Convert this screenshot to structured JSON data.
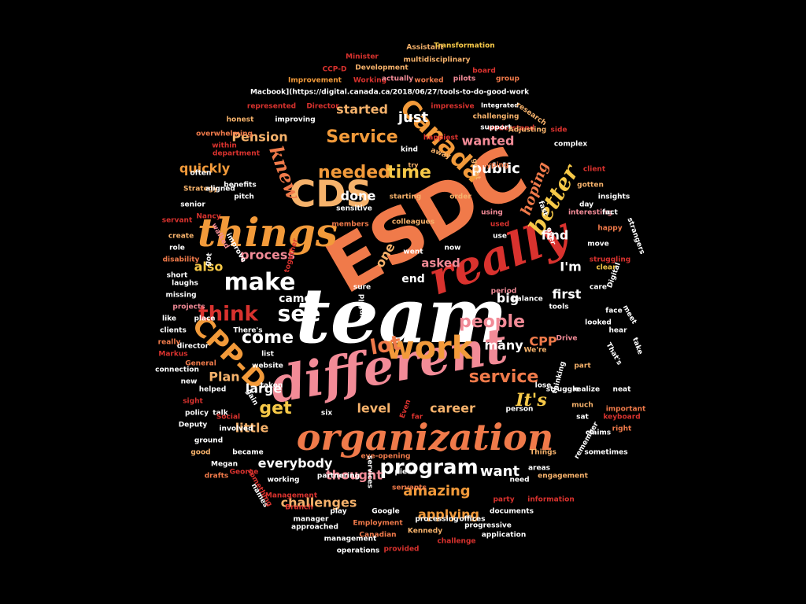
{
  "palette": {
    "background": "#000000",
    "white": "#ffffff",
    "pink": "#f28b97",
    "coral": "#f07a4a",
    "orange": "#f29a3a",
    "red": "#d9322e",
    "peach": "#f6b26b",
    "yellow": "#f7c948",
    "salmon": "#f56f6f"
  },
  "words": [
    {
      "text": "team",
      "weight": 100,
      "color": "white"
    },
    {
      "text": "ESDC",
      "weight": 95,
      "color": "coral"
    },
    {
      "text": "different",
      "weight": 80,
      "color": "pink"
    },
    {
      "text": "really",
      "weight": 72,
      "color": "red"
    },
    {
      "text": "organization",
      "weight": 70,
      "color": "coral"
    },
    {
      "text": "things",
      "weight": 62,
      "color": "orange"
    },
    {
      "text": "CDS",
      "weight": 60,
      "color": "peach"
    },
    {
      "text": "work",
      "weight": 55,
      "color": "orange"
    },
    {
      "text": "make",
      "weight": 50,
      "color": "white"
    },
    {
      "text": "Canada",
      "weight": 46,
      "color": "orange"
    },
    {
      "text": "CPP-D",
      "weight": 44,
      "color": "orange"
    },
    {
      "text": "program",
      "weight": 40,
      "color": "white"
    },
    {
      "text": "see",
      "weight": 38,
      "color": "white"
    },
    {
      "text": "lot",
      "weight": 38,
      "color": "coral"
    },
    {
      "text": "better",
      "weight": 36,
      "color": "yellow"
    },
    {
      "text": "knew",
      "weight": 34,
      "color": "coral"
    },
    {
      "text": "think",
      "weight": 34,
      "color": "red"
    },
    {
      "text": "needed",
      "weight": 33,
      "color": "orange"
    },
    {
      "text": "Service",
      "weight": 33,
      "color": "orange"
    },
    {
      "text": "time",
      "weight": 32,
      "color": "yellow"
    },
    {
      "text": "service",
      "weight": 32,
      "color": "coral"
    },
    {
      "text": "It's",
      "weight": 32,
      "color": "yellow"
    },
    {
      "text": "people",
      "weight": 31,
      "color": "pink"
    },
    {
      "text": "get",
      "weight": 30,
      "color": "yellow"
    },
    {
      "text": "come",
      "weight": 30,
      "color": "white"
    },
    {
      "text": "everybody",
      "weight": 28,
      "color": "white"
    },
    {
      "text": "amazing",
      "weight": 28,
      "color": "orange"
    },
    {
      "text": "challenges",
      "weight": 28,
      "color": "peach"
    },
    {
      "text": "applying",
      "weight": 27,
      "color": "orange"
    },
    {
      "text": "want",
      "weight": 27,
      "color": "white"
    },
    {
      "text": "public",
      "weight": 27,
      "color": "white"
    },
    {
      "text": "done",
      "weight": 26,
      "color": "white"
    },
    {
      "text": "started",
      "weight": 26,
      "color": "peach"
    },
    {
      "text": "wanted",
      "weight": 26,
      "color": "pink"
    },
    {
      "text": "just",
      "weight": 26,
      "color": "white"
    },
    {
      "text": "hoping",
      "weight": 25,
      "color": "coral"
    },
    {
      "text": "Pension",
      "weight": 25,
      "color": "peach"
    },
    {
      "text": "quickly",
      "weight": 25,
      "color": "orange"
    },
    {
      "text": "process",
      "weight": 24,
      "color": "pink"
    },
    {
      "text": "also",
      "weight": 24,
      "color": "yellow"
    },
    {
      "text": "Plan",
      "weight": 24,
      "color": "peach"
    },
    {
      "text": "large",
      "weight": 24,
      "color": "white"
    },
    {
      "text": "little",
      "weight": 24,
      "color": "peach"
    },
    {
      "text": "level",
      "weight": 24,
      "color": "peach"
    },
    {
      "text": "thought",
      "weight": 24,
      "color": "pink"
    },
    {
      "text": "career",
      "weight": 23,
      "color": "peach"
    },
    {
      "text": "many",
      "weight": 23,
      "color": "white"
    },
    {
      "text": "CPP",
      "weight": 23,
      "color": "coral"
    },
    {
      "text": "first",
      "weight": 23,
      "color": "white"
    },
    {
      "text": "find",
      "weight": 23,
      "color": "white"
    },
    {
      "text": "asked",
      "weight": 22,
      "color": "pink"
    },
    {
      "text": "I'm",
      "weight": 22,
      "color": "white"
    },
    {
      "text": "end",
      "weight": 22,
      "color": "white"
    },
    {
      "text": "big",
      "weight": 22,
      "color": "white"
    },
    {
      "text": "came",
      "weight": 22,
      "color": "white"
    },
    {
      "text": "one",
      "weight": 22,
      "color": "peach"
    },
    {
      "text": "Macbook](https://digital.canada.ca/2018/06/27/tools-to-do-good-work",
      "weight": 10,
      "color": "white"
    },
    {
      "text": "Minister",
      "weight": 11,
      "color": "red"
    },
    {
      "text": "Assistant",
      "weight": 11,
      "color": "peach"
    },
    {
      "text": "Transformation",
      "weight": 11,
      "color": "yellow"
    },
    {
      "text": "CCP-D",
      "weight": 11,
      "color": "red"
    },
    {
      "text": "Development",
      "weight": 11,
      "color": "peach"
    },
    {
      "text": "multidisciplinary",
      "weight": 11,
      "color": "peach"
    },
    {
      "text": "board",
      "weight": 11,
      "color": "red"
    },
    {
      "text": "Improvement",
      "weight": 11,
      "color": "orange"
    },
    {
      "text": "Working",
      "weight": 11,
      "color": "red"
    },
    {
      "text": "actually",
      "weight": 11,
      "color": "pink"
    },
    {
      "text": "worked",
      "weight": 11,
      "color": "coral"
    },
    {
      "text": "pilots",
      "weight": 11,
      "color": "pink"
    },
    {
      "text": "group",
      "weight": 11,
      "color": "coral"
    },
    {
      "text": "Integrated",
      "weight": 11,
      "color": "white"
    },
    {
      "text": "represented",
      "weight": 11,
      "color": "red"
    },
    {
      "text": "Director",
      "weight": 11,
      "color": "red"
    },
    {
      "text": "impressive",
      "weight": 11,
      "color": "red"
    },
    {
      "text": "challenging",
      "weight": 11,
      "color": "peach"
    },
    {
      "text": "honest",
      "weight": 11,
      "color": "peach"
    },
    {
      "text": "improving",
      "weight": 11,
      "color": "white"
    },
    {
      "text": "understand",
      "weight": 11,
      "color": "red"
    },
    {
      "text": "research",
      "weight": 11,
      "color": "peach"
    },
    {
      "text": "overwhelming",
      "weight": 11,
      "color": "coral"
    },
    {
      "text": "support",
      "weight": 11,
      "color": "white"
    },
    {
      "text": "Adjusting",
      "weight": 11,
      "color": "peach"
    },
    {
      "text": "side",
      "weight": 11,
      "color": "red"
    },
    {
      "text": "within",
      "weight": 11,
      "color": "red"
    },
    {
      "text": "happiest",
      "weight": 11,
      "color": "red"
    },
    {
      "text": "complex",
      "weight": 11,
      "color": "white"
    },
    {
      "text": "department",
      "weight": 11,
      "color": "red"
    },
    {
      "text": "kind",
      "weight": 11,
      "color": "white"
    },
    {
      "text": "away",
      "weight": 11,
      "color": "peach"
    },
    {
      "text": "try",
      "weight": 11,
      "color": "peach"
    },
    {
      "text": "often",
      "weight": 11,
      "color": "white"
    },
    {
      "text": "benefits",
      "weight": 11,
      "color": "white"
    },
    {
      "text": "great",
      "weight": 11,
      "color": "peach"
    },
    {
      "text": "typing",
      "weight": 11,
      "color": "coral"
    },
    {
      "text": "client",
      "weight": 11,
      "color": "red"
    },
    {
      "text": "Strategy",
      "weight": 11,
      "color": "peach"
    },
    {
      "text": "aligned",
      "weight": 11,
      "color": "white"
    },
    {
      "text": "pitch",
      "weight": 11,
      "color": "white"
    },
    {
      "text": "starting",
      "weight": 11,
      "color": "peach"
    },
    {
      "text": "gotten",
      "weight": 11,
      "color": "peach"
    },
    {
      "text": "insights",
      "weight": 11,
      "color": "white"
    },
    {
      "text": "senior",
      "weight": 11,
      "color": "white"
    },
    {
      "text": "sensitive",
      "weight": 11,
      "color": "white"
    },
    {
      "text": "order",
      "weight": 11,
      "color": "peach"
    },
    {
      "text": "day",
      "weight": 11,
      "color": "white"
    },
    {
      "text": "servant",
      "weight": 11,
      "color": "red"
    },
    {
      "text": "Nancy",
      "weight": 11,
      "color": "red"
    },
    {
      "text": "using",
      "weight": 11,
      "color": "pink"
    },
    {
      "text": "fast",
      "weight": 11,
      "color": "white"
    },
    {
      "text": "interesting",
      "weight": 11,
      "color": "pink"
    },
    {
      "text": "fact",
      "weight": 11,
      "color": "white"
    },
    {
      "text": "create",
      "weight": 11,
      "color": "peach"
    },
    {
      "text": "walked",
      "weight": 11,
      "color": "pink"
    },
    {
      "text": "members",
      "weight": 11,
      "color": "coral"
    },
    {
      "text": "used",
      "weight": 11,
      "color": "red"
    },
    {
      "text": "colleagues",
      "weight": 11,
      "color": "peach"
    },
    {
      "text": "use",
      "weight": 11,
      "color": "white"
    },
    {
      "text": "ever",
      "weight": 11,
      "color": "white"
    },
    {
      "text": "happy",
      "weight": 11,
      "color": "coral"
    },
    {
      "text": "role",
      "weight": 11,
      "color": "white"
    },
    {
      "text": "improve",
      "weight": 11,
      "color": "white"
    },
    {
      "text": "together",
      "weight": 11,
      "color": "red"
    },
    {
      "text": "went",
      "weight": 11,
      "color": "white"
    },
    {
      "text": "now",
      "weight": 11,
      "color": "white"
    },
    {
      "text": "move",
      "weight": 11,
      "color": "white"
    },
    {
      "text": "strangers",
      "weight": 11,
      "color": "white"
    },
    {
      "text": "disability",
      "weight": 11,
      "color": "coral"
    },
    {
      "text": "got",
      "weight": 11,
      "color": "white"
    },
    {
      "text": "struggling",
      "weight": 11,
      "color": "red"
    },
    {
      "text": "short",
      "weight": 11,
      "color": "white"
    },
    {
      "text": "Digital",
      "weight": 11,
      "color": "white"
    },
    {
      "text": "clear",
      "weight": 11,
      "color": "yellow"
    },
    {
      "text": "laughs",
      "weight": 11,
      "color": "white"
    },
    {
      "text": "sure",
      "weight": 11,
      "color": "white"
    },
    {
      "text": "care",
      "weight": 11,
      "color": "white"
    },
    {
      "text": "missing",
      "weight": 11,
      "color": "white"
    },
    {
      "text": "projects",
      "weight": 11,
      "color": "pink"
    },
    {
      "text": "period",
      "weight": 11,
      "color": "pink"
    },
    {
      "text": "tools",
      "weight": 11,
      "color": "white"
    },
    {
      "text": "balance",
      "weight": 11,
      "color": "white"
    },
    {
      "text": "like",
      "weight": 11,
      "color": "white"
    },
    {
      "text": "place",
      "weight": 11,
      "color": "white"
    },
    {
      "text": "unfold",
      "weight": 11,
      "color": "white"
    },
    {
      "text": "face",
      "weight": 11,
      "color": "white"
    },
    {
      "text": "looked",
      "weight": 11,
      "color": "white"
    },
    {
      "text": "clients",
      "weight": 11,
      "color": "white"
    },
    {
      "text": "There's",
      "weight": 11,
      "color": "white"
    },
    {
      "text": "hear",
      "weight": 11,
      "color": "white"
    },
    {
      "text": "meet",
      "weight": 11,
      "color": "white"
    },
    {
      "text": "really",
      "weight": 11,
      "color": "coral"
    },
    {
      "text": "director",
      "weight": 11,
      "color": "white"
    },
    {
      "text": "Drive",
      "weight": 11,
      "color": "pink"
    },
    {
      "text": "take",
      "weight": 11,
      "color": "white"
    },
    {
      "text": "Markus",
      "weight": 11,
      "color": "red"
    },
    {
      "text": "list",
      "weight": 11,
      "color": "white"
    },
    {
      "text": "We're",
      "weight": 11,
      "color": "peach"
    },
    {
      "text": "That's",
      "weight": 11,
      "color": "white"
    },
    {
      "text": "General",
      "weight": 11,
      "color": "coral"
    },
    {
      "text": "website",
      "weight": 11,
      "color": "white"
    },
    {
      "text": "part",
      "weight": 11,
      "color": "peach"
    },
    {
      "text": "connection",
      "weight": 11,
      "color": "white"
    },
    {
      "text": "thinking",
      "weight": 11,
      "color": "white"
    },
    {
      "text": "struggle",
      "weight": 11,
      "color": "white"
    },
    {
      "text": "new",
      "weight": 11,
      "color": "white"
    },
    {
      "text": "taken",
      "weight": 11,
      "color": "white"
    },
    {
      "text": "lose",
      "weight": 11,
      "color": "white"
    },
    {
      "text": "realize",
      "weight": 11,
      "color": "white"
    },
    {
      "text": "neat",
      "weight": 11,
      "color": "white"
    },
    {
      "text": "helped",
      "weight": 11,
      "color": "white"
    },
    {
      "text": "gain",
      "weight": 11,
      "color": "white"
    },
    {
      "text": "sight",
      "weight": 11,
      "color": "red"
    },
    {
      "text": "talk",
      "weight": 11,
      "color": "white"
    },
    {
      "text": "much",
      "weight": 11,
      "color": "peach"
    },
    {
      "text": "important",
      "weight": 11,
      "color": "coral"
    },
    {
      "text": "policy",
      "weight": 11,
      "color": "white"
    },
    {
      "text": "Social",
      "weight": 11,
      "color": "red"
    },
    {
      "text": "person",
      "weight": 11,
      "color": "white"
    },
    {
      "text": "six",
      "weight": 11,
      "color": "white"
    },
    {
      "text": "Even",
      "weight": 11,
      "color": "red"
    },
    {
      "text": "far",
      "weight": 11,
      "color": "red"
    },
    {
      "text": "sat",
      "weight": 11,
      "color": "white"
    },
    {
      "text": "keyboard",
      "weight": 11,
      "color": "red"
    },
    {
      "text": "Deputy",
      "weight": 11,
      "color": "white"
    },
    {
      "text": "involved",
      "weight": 11,
      "color": "white"
    },
    {
      "text": "claims",
      "weight": 11,
      "color": "white"
    },
    {
      "text": "right",
      "weight": 11,
      "color": "coral"
    },
    {
      "text": "ground",
      "weight": 11,
      "color": "white"
    },
    {
      "text": "remember",
      "weight": 11,
      "color": "white"
    },
    {
      "text": "good",
      "weight": 11,
      "color": "peach"
    },
    {
      "text": "became",
      "weight": 11,
      "color": "white"
    },
    {
      "text": "eye-opening",
      "weight": 11,
      "color": "coral"
    },
    {
      "text": "Things",
      "weight": 11,
      "color": "peach"
    },
    {
      "text": "sometimes",
      "weight": 11,
      "color": "white"
    },
    {
      "text": "Megan",
      "weight": 11,
      "color": "white"
    },
    {
      "text": "services",
      "weight": 11,
      "color": "white"
    },
    {
      "text": "piece",
      "weight": 11,
      "color": "white"
    },
    {
      "text": "areas",
      "weight": 11,
      "color": "white"
    },
    {
      "text": "drafts",
      "weight": 11,
      "color": "coral"
    },
    {
      "text": "George",
      "weight": 11,
      "color": "red"
    },
    {
      "text": "partnering",
      "weight": 11,
      "color": "white"
    },
    {
      "text": "need",
      "weight": 11,
      "color": "white"
    },
    {
      "text": "engagement",
      "weight": 11,
      "color": "peach"
    },
    {
      "text": "working",
      "weight": 11,
      "color": "white"
    },
    {
      "text": "servants",
      "weight": 11,
      "color": "coral"
    },
    {
      "text": "names",
      "weight": 11,
      "color": "white"
    },
    {
      "text": "Management",
      "weight": 11,
      "color": "red"
    },
    {
      "text": "something",
      "weight": 11,
      "color": "red"
    },
    {
      "text": "party",
      "weight": 11,
      "color": "red"
    },
    {
      "text": "information",
      "weight": 11,
      "color": "red"
    },
    {
      "text": "Branch",
      "weight": 11,
      "color": "red"
    },
    {
      "text": "play",
      "weight": 11,
      "color": "white"
    },
    {
      "text": "Google",
      "weight": 11,
      "color": "white"
    },
    {
      "text": "documents",
      "weight": 11,
      "color": "white"
    },
    {
      "text": "manager",
      "weight": 11,
      "color": "white"
    },
    {
      "text": "offices",
      "weight": 11,
      "color": "white"
    },
    {
      "text": "approached",
      "weight": 11,
      "color": "white"
    },
    {
      "text": "Employment",
      "weight": 11,
      "color": "coral"
    },
    {
      "text": "processing",
      "weight": 11,
      "color": "white"
    },
    {
      "text": "progressive",
      "weight": 11,
      "color": "white"
    },
    {
      "text": "Canadian",
      "weight": 11,
      "color": "coral"
    },
    {
      "text": "Kennedy",
      "weight": 11,
      "color": "peach"
    },
    {
      "text": "application",
      "weight": 11,
      "color": "white"
    },
    {
      "text": "management",
      "weight": 11,
      "color": "white"
    },
    {
      "text": "challenge",
      "weight": 11,
      "color": "red"
    },
    {
      "text": "operations",
      "weight": 11,
      "color": "white"
    },
    {
      "text": "provided",
      "weight": 11,
      "color": "red"
    },
    {
      "text": "somebody",
      "weight": 11,
      "color": "red"
    }
  ]
}
